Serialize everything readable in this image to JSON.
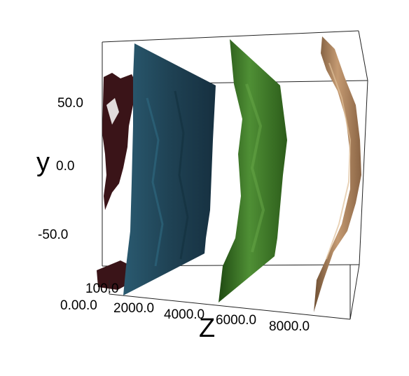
{
  "axes": {
    "y_label": "y",
    "z_label": "Z",
    "y_ticks": [
      "50.0",
      "0.0",
      "-50.0"
    ],
    "z_ticks": [
      "0.00.0",
      "2000.0",
      "4000.0",
      "6000.0",
      "8000.0"
    ],
    "x_tick_partial": "100.0"
  },
  "colors": {
    "slab_1": "#3a1418",
    "slab_2": "#1f4254",
    "slab_3": "#3f7a28",
    "slab_4": "#b08660",
    "box_lines": "#222222",
    "background": "#ffffff"
  }
}
